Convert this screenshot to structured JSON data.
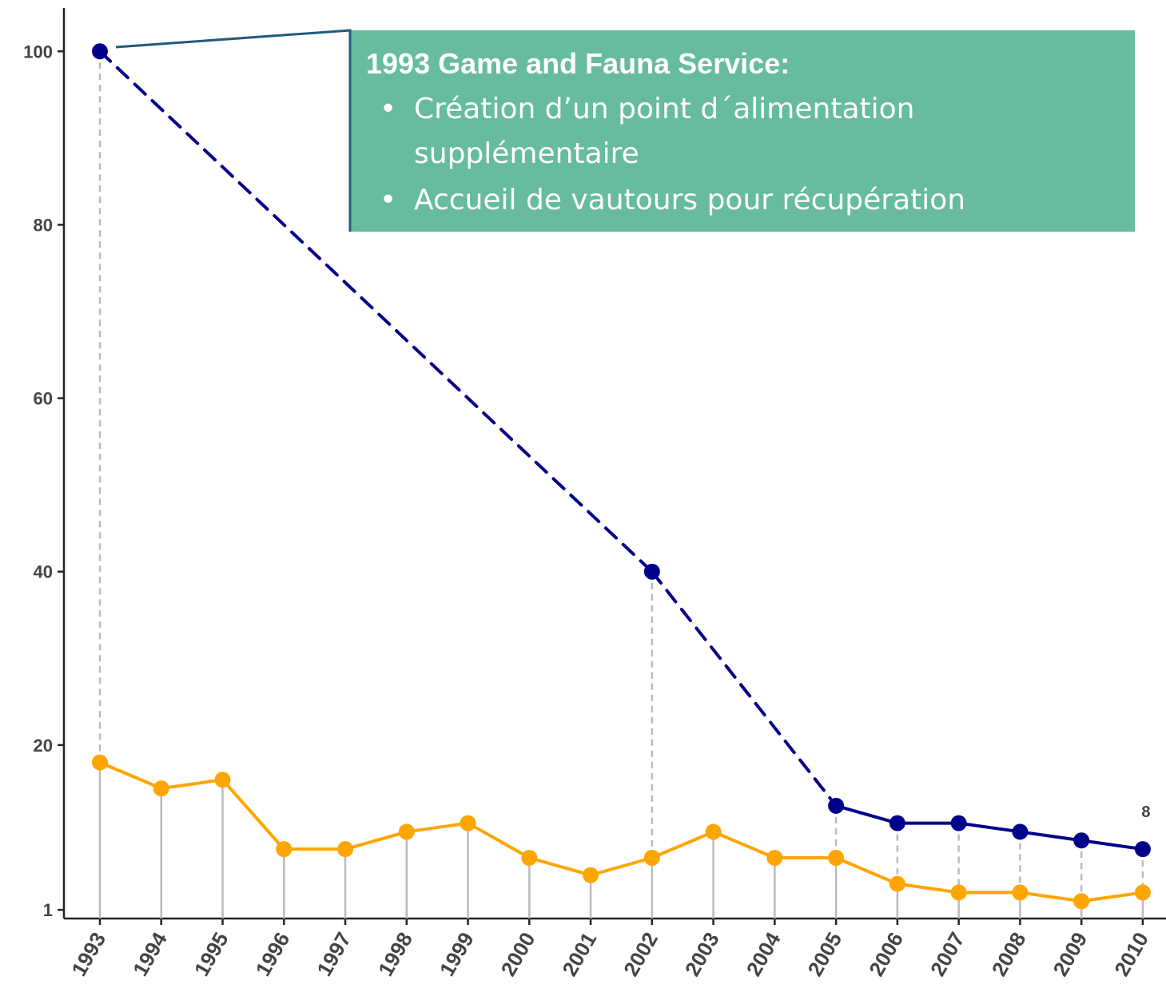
{
  "chart_data": {
    "type": "line",
    "categories": [
      "1993",
      "1994",
      "1995",
      "1996",
      "1997",
      "1998",
      "1999",
      "2000",
      "2001",
      "2002",
      "2003",
      "2004",
      "2005",
      "2006",
      "2007",
      "2008",
      "2009",
      "2010"
    ],
    "series": [
      {
        "color": "#ffa500",
        "values": [
          18,
          15,
          16,
          8,
          8,
          10,
          11,
          7,
          5,
          7,
          10,
          7,
          7,
          4,
          3,
          3,
          2,
          3
        ],
        "drop_lines": "solid"
      },
      {
        "color": "#00008b",
        "values": [
          100,
          null,
          null,
          null,
          null,
          null,
          null,
          null,
          null,
          40,
          null,
          null,
          13,
          11,
          11,
          10,
          9,
          8
        ],
        "connect_gaps": "dashed",
        "drop_lines": "dashed",
        "value_labels": [
          null,
          null,
          null,
          null,
          null,
          null,
          null,
          null,
          null,
          null,
          null,
          null,
          null,
          null,
          null,
          null,
          null,
          "8"
        ]
      }
    ],
    "ylim": [
      0,
      105
    ],
    "yticks": [
      1,
      20,
      40,
      60,
      80,
      100
    ],
    "annotation": {
      "title": "1993 Game and Fauna Service:",
      "bullets": [
        "Création d’un point d´alimentation supplémentaire",
        "Accueil de vautours pour récupération"
      ],
      "color": "#66bba0"
    }
  }
}
